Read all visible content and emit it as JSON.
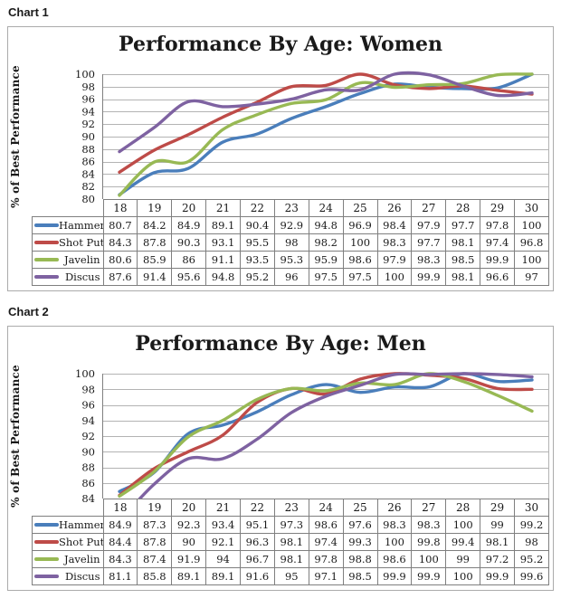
{
  "labels": {
    "chart1": "Chart 1",
    "chart2": "Chart 2"
  },
  "colors": {
    "series_hammer": "#4A7EBB",
    "series_shot_put": "#BE4B48",
    "series_javelin": "#98B954",
    "series_discus": "#7E62A1",
    "gridline": "#B3B3B3",
    "axis": "#808080",
    "table_border": "#7F7F7F",
    "frame_border": "#ABABAB",
    "text": "#1A1A1A"
  },
  "chart_data": [
    {
      "type": "line",
      "title": "Performance By Age: Women",
      "xlabel": "",
      "ylabel": "% of Best Performance",
      "categories": [
        18,
        19,
        20,
        21,
        22,
        23,
        24,
        25,
        26,
        27,
        28,
        29,
        30
      ],
      "ylim": [
        80,
        100
      ],
      "ytick_step": 2,
      "grid": true,
      "legend_position": "data-table-left-column",
      "series": [
        {
          "name": "Hammer",
          "color": "#4A7EBB",
          "values": [
            80.7,
            84.2,
            84.9,
            89.1,
            90.4,
            92.9,
            94.8,
            96.9,
            98.4,
            97.9,
            97.7,
            97.8,
            100
          ]
        },
        {
          "name": "Shot Put",
          "color": "#BE4B48",
          "values": [
            84.3,
            87.8,
            90.3,
            93.1,
            95.5,
            98,
            98.2,
            100,
            98.3,
            97.7,
            98.1,
            97.4,
            96.8
          ]
        },
        {
          "name": "Javelin",
          "color": "#98B954",
          "values": [
            80.6,
            85.9,
            86,
            91.1,
            93.5,
            95.3,
            95.9,
            98.6,
            97.9,
            98.3,
            98.5,
            99.9,
            100
          ]
        },
        {
          "name": "Discus",
          "color": "#7E62A1",
          "values": [
            87.6,
            91.4,
            95.6,
            94.8,
            95.2,
            96,
            97.5,
            97.5,
            100,
            99.9,
            98.1,
            96.6,
            97
          ]
        }
      ]
    },
    {
      "type": "line",
      "title": "Performance By Age: Men",
      "xlabel": "",
      "ylabel": "% of Best Performance",
      "categories": [
        18,
        19,
        20,
        21,
        22,
        23,
        24,
        25,
        26,
        27,
        28,
        29,
        30
      ],
      "ylim": [
        84,
        100
      ],
      "ytick_step": 2,
      "grid": true,
      "legend_position": "data-table-left-column",
      "series": [
        {
          "name": "Hammer",
          "color": "#4A7EBB",
          "values": [
            84.9,
            87.3,
            92.3,
            93.4,
            95.1,
            97.3,
            98.6,
            97.6,
            98.3,
            98.3,
            100,
            99,
            99.2
          ]
        },
        {
          "name": "Shot Put",
          "color": "#BE4B48",
          "values": [
            84.4,
            87.8,
            90,
            92.1,
            96.3,
            98.1,
            97.4,
            99.3,
            100,
            99.8,
            99.4,
            98.1,
            98
          ]
        },
        {
          "name": "Javelin",
          "color": "#98B954",
          "values": [
            84.3,
            87.4,
            91.9,
            94,
            96.7,
            98.1,
            97.8,
            98.8,
            98.6,
            100,
            99,
            97.2,
            95.2
          ]
        },
        {
          "name": "Discus",
          "color": "#7E62A1",
          "values": [
            81.1,
            85.8,
            89.1,
            89.1,
            91.6,
            95,
            97.1,
            98.5,
            99.9,
            99.9,
            100,
            99.9,
            99.6
          ]
        }
      ]
    }
  ]
}
